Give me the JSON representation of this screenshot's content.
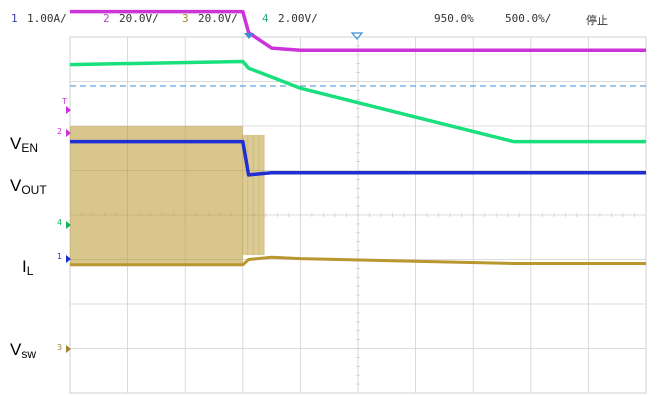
{
  "status_bar": {
    "ch1": {
      "num": "1",
      "scale": "1.00A/"
    },
    "ch2": {
      "num": "2",
      "scale": "20.0V/"
    },
    "ch3": {
      "num": "3",
      "scale": "20.0V/"
    },
    "ch4": {
      "num": "4",
      "scale": "2.00V/"
    },
    "time_position": "950.0%",
    "time_scale": "500.0%/",
    "run_state": "停止"
  },
  "signal_labels": {
    "en": {
      "main": "V",
      "sub": "EN"
    },
    "out": {
      "main": "V",
      "sub": "OUT"
    },
    "il": {
      "main": "I",
      "sub": "L"
    },
    "sw": {
      "main": "V",
      "sub": "sw"
    }
  },
  "channel_markers": {
    "trigger": "T",
    "ch2": "2",
    "ch4": "4",
    "ch1": "1",
    "ch3": "3"
  },
  "colors": {
    "ch1": "#1f2fd1",
    "ch2": "#cc33d9",
    "ch3": "#b8972f",
    "ch4": "#19e07c",
    "grid": "#d0d0d0",
    "trigger_level": "#3b8fd6"
  },
  "chart_data": {
    "type": "line",
    "title": "",
    "xlabel": "",
    "ylabel": "",
    "grid": true,
    "divisions": {
      "x": 10,
      "y": 8
    },
    "x": [
      0,
      3,
      3.1,
      3.5,
      4,
      7.7,
      10
    ],
    "series": [
      {
        "name": "V_EN",
        "channel": 2,
        "values": [
          4.57,
          4.57,
          4.1,
          3.75,
          3.7,
          3.7,
          3.7
        ]
      },
      {
        "name": "V_OUT",
        "channel": 4,
        "values": [
          3.38,
          3.45,
          3.3,
          3.1,
          2.85,
          1.65,
          1.65
        ]
      },
      {
        "name": "I_L",
        "channel": 1,
        "values": [
          1.65,
          1.65,
          0.9,
          0.95,
          0.95,
          0.95,
          0.95
        ]
      },
      {
        "name": "V_sw",
        "channel": 3,
        "values": [
          -1.12,
          -1.12,
          -1.0,
          -0.95,
          -0.98,
          -1.09,
          -1.09
        ]
      }
    ]
  }
}
